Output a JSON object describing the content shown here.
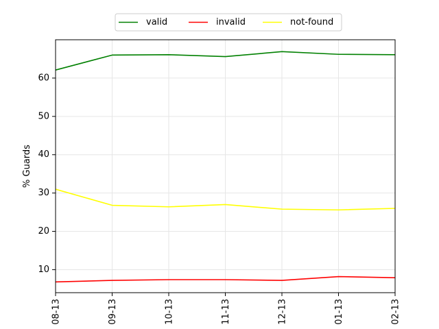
{
  "chart_data": {
    "type": "line",
    "title": "",
    "xlabel": "",
    "ylabel": "% Guards",
    "categories": [
      "08-13",
      "09-13",
      "10-13",
      "11-13",
      "12-13",
      "01-13",
      "02-13"
    ],
    "series": [
      {
        "name": "valid",
        "color": "#008000",
        "values": [
          62.1,
          66.0,
          66.1,
          65.6,
          66.9,
          66.2,
          66.1
        ]
      },
      {
        "name": "invalid",
        "color": "#ff0000",
        "values": [
          6.8,
          7.2,
          7.4,
          7.4,
          7.2,
          8.2,
          7.9
        ]
      },
      {
        "name": "not-found",
        "color": "#ffff00",
        "values": [
          31.0,
          26.8,
          26.4,
          27.0,
          25.8,
          25.6,
          26.0
        ]
      }
    ],
    "ylim": [
      4,
      70
    ],
    "yticks": [
      10,
      20,
      30,
      40,
      50,
      60
    ],
    "grid": true,
    "legend": {
      "placement": "upper-center-outside",
      "columns": 3
    }
  }
}
